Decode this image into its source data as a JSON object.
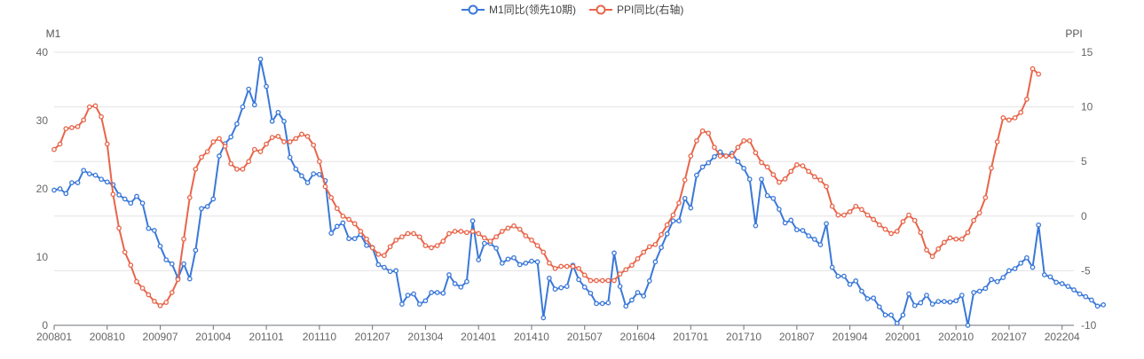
{
  "chart_data": {
    "type": "line",
    "legend_position": "top-center",
    "grid": true,
    "x_tick_labels": [
      "200801",
      "200810",
      "200907",
      "201004",
      "201101",
      "201110",
      "201207",
      "201304",
      "201401",
      "201410",
      "201507",
      "201604",
      "201701",
      "201710",
      "201807",
      "201904",
      "202001",
      "202010",
      "202107",
      "202204"
    ],
    "x_range": [
      "200801",
      "202206"
    ],
    "left_axis": {
      "name": "M1",
      "min": 0,
      "max": 40,
      "ticks": [
        0,
        10,
        20,
        30,
        40
      ]
    },
    "right_axis": {
      "name": "PPI",
      "min": -10,
      "max": 15,
      "ticks": [
        -10,
        -5,
        0,
        5,
        10,
        15
      ]
    },
    "series": [
      {
        "name": "M1同比(领先10期)",
        "axis": "left",
        "color": "#3a78d8",
        "values": [
          19.8,
          20.0,
          19.3,
          20.9,
          20.9,
          22.7,
          22.2,
          22.0,
          21.4,
          21.0,
          20.6,
          19.1,
          18.5,
          17.9,
          18.9,
          17.9,
          14.2,
          13.9,
          11.6,
          9.6,
          9.0,
          6.9,
          9.0,
          6.8,
          11.0,
          17.1,
          17.4,
          18.5,
          24.8,
          26.6,
          27.6,
          29.5,
          32.0,
          34.6,
          32.3,
          39.0,
          35.0,
          29.9,
          31.2,
          29.9,
          24.6,
          22.9,
          21.9,
          20.9,
          22.2,
          22.1,
          21.2,
          13.5,
          14.5,
          15.0,
          12.7,
          12.7,
          13.3,
          11.7,
          11.4,
          8.9,
          8.5,
          7.9,
          8.0,
          3.1,
          4.4,
          4.6,
          3.1,
          3.6,
          4.8,
          4.8,
          4.7,
          7.4,
          6.1,
          5.6,
          6.4,
          15.3,
          9.6,
          12.0,
          12.0,
          11.3,
          9.1,
          9.7,
          9.9,
          8.9,
          9.1,
          9.4,
          9.3,
          1.1,
          6.9,
          5.3,
          5.5,
          5.7,
          8.8,
          6.7,
          5.6,
          4.7,
          3.2,
          3.2,
          3.3,
          10.6,
          5.7,
          2.8,
          3.7,
          4.8,
          4.3,
          6.5,
          9.3,
          11.4,
          13.4,
          15.3,
          15.3,
          18.6,
          17.2,
          22.0,
          23.2,
          23.8,
          24.7,
          25.4,
          24.8,
          25.2,
          24.0,
          23.0,
          21.4,
          14.6,
          21.4,
          19.0,
          18.6,
          17.0,
          15.0,
          15.4,
          14.0,
          13.9,
          13.1,
          12.6,
          11.8,
          14.9,
          8.5,
          7.2,
          7.2,
          6.0,
          6.5,
          5.0,
          3.9,
          4.0,
          2.7,
          1.5,
          1.5,
          0.3,
          1.5,
          4.6,
          2.9,
          3.3,
          4.4,
          3.1,
          3.5,
          3.5,
          3.4,
          3.6,
          4.4,
          0.0,
          4.8,
          5.0,
          5.4,
          6.7,
          6.4,
          7.0,
          8.0,
          8.3,
          9.1,
          9.9,
          8.5,
          14.7,
          7.4,
          7.1,
          6.3,
          6.1,
          5.7,
          5.2,
          4.6,
          4.2,
          3.7,
          2.8,
          3.0
        ]
      },
      {
        "name": "PPI同比(右轴)",
        "axis": "right",
        "color": "#e8654a",
        "values": [
          6.1,
          6.6,
          8.0,
          8.1,
          8.2,
          8.8,
          10.0,
          10.1,
          9.1,
          6.6,
          2.0,
          -1.1,
          -3.3,
          -4.5,
          -6.0,
          -6.6,
          -7.2,
          -7.8,
          -8.2,
          -7.9,
          -7.0,
          -5.8,
          -2.1,
          1.7,
          4.3,
          5.4,
          5.9,
          6.8,
          7.1,
          6.4,
          4.8,
          4.3,
          4.3,
          5.0,
          6.1,
          5.9,
          6.6,
          7.2,
          7.3,
          6.8,
          6.8,
          7.1,
          7.5,
          7.3,
          6.5,
          5.0,
          2.7,
          1.7,
          0.7,
          0.0,
          -0.3,
          -0.7,
          -1.4,
          -2.1,
          -2.9,
          -3.5,
          -3.6,
          -2.8,
          -2.2,
          -1.9,
          -1.6,
          -1.6,
          -1.9,
          -2.7,
          -2.9,
          -2.7,
          -2.3,
          -1.6,
          -1.4,
          -1.4,
          -1.5,
          -1.4,
          -1.6,
          -2.0,
          -2.3,
          -1.9,
          -1.4,
          -1.1,
          -0.9,
          -1.2,
          -1.8,
          -2.2,
          -2.7,
          -3.3,
          -4.3,
          -4.8,
          -4.6,
          -4.6,
          -4.6,
          -4.8,
          -5.4,
          -5.9,
          -5.9,
          -5.9,
          -5.9,
          -5.9,
          -5.3,
          -4.9,
          -4.5,
          -3.9,
          -3.3,
          -2.8,
          -2.6,
          -1.7,
          -0.8,
          0.1,
          1.2,
          3.3,
          5.5,
          6.9,
          7.8,
          7.6,
          6.3,
          5.5,
          5.5,
          5.5,
          6.3,
          6.9,
          6.9,
          5.8,
          4.9,
          4.5,
          3.8,
          3.1,
          3.4,
          4.1,
          4.7,
          4.6,
          4.1,
          3.6,
          3.3,
          2.7,
          0.9,
          0.1,
          0.1,
          0.4,
          0.9,
          0.6,
          0.1,
          -0.3,
          -0.8,
          -1.2,
          -1.6,
          -1.4,
          -0.5,
          0.1,
          -0.4,
          -1.5,
          -3.1,
          -3.7,
          -3.0,
          -2.4,
          -2.0,
          -2.1,
          -2.1,
          -1.5,
          -0.4,
          0.3,
          1.7,
          4.4,
          6.8,
          9.0,
          8.8,
          9.0,
          9.5,
          10.7,
          13.5,
          13.0
        ]
      }
    ]
  }
}
